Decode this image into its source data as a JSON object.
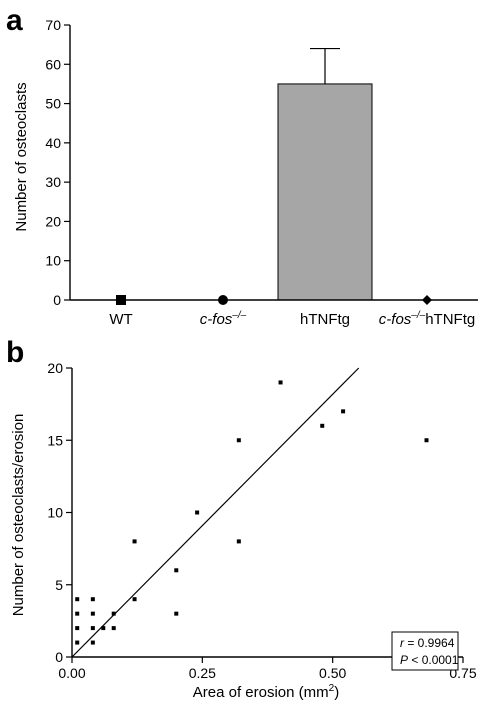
{
  "colors": {
    "bar_fill": "#a6a6a6",
    "ink": "#000000"
  },
  "chart_data": [
    {
      "panel": "a",
      "type": "bar",
      "ylabel": "Number of osteoclasts",
      "ylim": [
        0,
        70
      ],
      "yticks": [
        0,
        10,
        20,
        30,
        40,
        50,
        60,
        70
      ],
      "categories": [
        {
          "parts": [
            {
              "text": "WT",
              "italic": false
            }
          ],
          "marker": "square"
        },
        {
          "parts": [
            {
              "text": "c-fos",
              "italic": true
            },
            {
              "text": "–/–",
              "italic": true,
              "sup": true
            }
          ],
          "marker": "circle"
        },
        {
          "parts": [
            {
              "text": "hTNFtg",
              "italic": false
            }
          ],
          "marker": "none"
        },
        {
          "parts": [
            {
              "text": "c-fos",
              "italic": true
            },
            {
              "text": "–/–",
              "italic": true,
              "sup": true
            },
            {
              "text": "hTNFtg",
              "italic": false
            }
          ],
          "marker": "diamond"
        }
      ],
      "values": [
        0,
        0,
        55,
        0
      ],
      "errors": [
        0,
        0,
        9,
        0
      ],
      "grid": false,
      "legend": "none"
    },
    {
      "panel": "b",
      "type": "scatter",
      "xlabel": "Area of erosion (mm",
      "xlabel_sup": "2",
      "xlabel_end": ")",
      "ylabel": "Number of osteoclasts/erosion",
      "xlim": [
        0,
        0.75
      ],
      "ylim": [
        0,
        20
      ],
      "xticks": [
        "0.00",
        "0.25",
        "0.50",
        "0.75"
      ],
      "yticks": [
        0,
        5,
        10,
        15,
        20
      ],
      "points": [
        [
          0.01,
          1
        ],
        [
          0.01,
          2
        ],
        [
          0.01,
          3
        ],
        [
          0.01,
          4
        ],
        [
          0.04,
          1
        ],
        [
          0.04,
          2
        ],
        [
          0.04,
          3
        ],
        [
          0.04,
          4
        ],
        [
          0.06,
          2
        ],
        [
          0.08,
          2
        ],
        [
          0.08,
          3
        ],
        [
          0.12,
          4
        ],
        [
          0.12,
          8
        ],
        [
          0.2,
          3
        ],
        [
          0.2,
          6
        ],
        [
          0.24,
          10
        ],
        [
          0.32,
          8
        ],
        [
          0.32,
          15
        ],
        [
          0.4,
          19
        ],
        [
          0.48,
          16
        ],
        [
          0.52,
          17
        ],
        [
          0.68,
          15
        ]
      ],
      "fit_line": [
        [
          0.0,
          0.0
        ],
        [
          0.55,
          20
        ]
      ],
      "stats": {
        "r_label": "r",
        "r_value": " = 0.9964",
        "p_label": "P",
        "p_value": " < 0.0001"
      },
      "grid": false,
      "legend": "none"
    }
  ]
}
